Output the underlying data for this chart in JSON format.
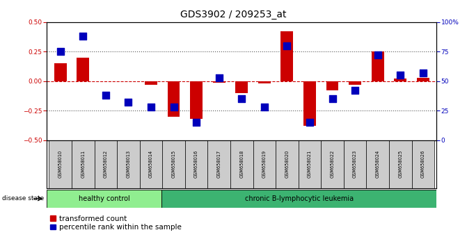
{
  "title": "GDS3902 / 209253_at",
  "samples": [
    "GSM658010",
    "GSM658011",
    "GSM658012",
    "GSM658013",
    "GSM658014",
    "GSM658015",
    "GSM658016",
    "GSM658017",
    "GSM658018",
    "GSM658019",
    "GSM658020",
    "GSM658021",
    "GSM658022",
    "GSM658023",
    "GSM658024",
    "GSM658025",
    "GSM658026"
  ],
  "red_values": [
    0.15,
    0.2,
    0.0,
    0.0,
    -0.03,
    -0.3,
    -0.32,
    -0.01,
    -0.1,
    -0.02,
    0.42,
    -0.38,
    -0.08,
    -0.03,
    0.25,
    0.02,
    0.03
  ],
  "blue_pct": [
    75,
    88,
    38,
    32,
    28,
    28,
    15,
    53,
    35,
    28,
    80,
    15,
    35,
    42,
    72,
    55,
    57
  ],
  "ylim": [
    -0.5,
    0.5
  ],
  "y2lim": [
    0,
    100
  ],
  "yticks_left": [
    -0.5,
    -0.25,
    0.0,
    0.25,
    0.5
  ],
  "yticks_right": [
    0,
    25,
    50,
    75,
    100
  ],
  "hlines_dotted": [
    0.25,
    -0.25
  ],
  "healthy_count": 5,
  "group1_label": "healthy control",
  "group2_label": "chronic B-lymphocytic leukemia",
  "legend1_label": "transformed count",
  "legend2_label": "percentile rank within the sample",
  "bar_color": "#cc0000",
  "dot_color": "#0000bb",
  "bar_width": 0.55,
  "dot_size": 45,
  "group1_color": "#90ee90",
  "group2_color": "#3cb371",
  "xtick_bg": "#cccccc",
  "title_fontsize": 10,
  "axis_fontsize": 6.5,
  "group_fontsize": 7,
  "legend_fontsize": 7.5
}
